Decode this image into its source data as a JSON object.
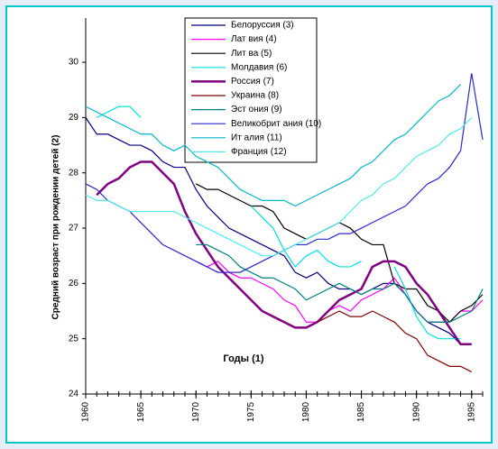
{
  "chart_data": {
    "type": "line",
    "xlabel": "Годы (1)",
    "ylabel": "Средний возраст при рождении детей (2)",
    "x": [
      1960,
      1961,
      1962,
      1963,
      1964,
      1965,
      1966,
      1967,
      1968,
      1969,
      1970,
      1971,
      1972,
      1973,
      1974,
      1975,
      1976,
      1977,
      1978,
      1979,
      1980,
      1981,
      1982,
      1983,
      1984,
      1985,
      1986,
      1987,
      1988,
      1989,
      1990,
      1991,
      1992,
      1993,
      1994,
      1995,
      1996
    ],
    "xlim": [
      1960,
      1996
    ],
    "xticks": [
      1960,
      1965,
      1970,
      1975,
      1980,
      1985,
      1990,
      1995
    ],
    "ylim": [
      24,
      30.8
    ],
    "yticks": [
      24,
      25,
      26,
      27,
      28,
      29,
      30
    ],
    "series": [
      {
        "name": "Белоруссия (3)",
        "color": "#000080",
        "values": [
          29.0,
          28.7,
          28.7,
          28.6,
          28.5,
          28.5,
          28.4,
          28.2,
          28.1,
          28.1,
          27.7,
          27.4,
          27.2,
          27.0,
          26.9,
          26.8,
          26.7,
          26.6,
          26.5,
          26.2,
          26.1,
          26.2,
          26.0,
          25.9,
          25.9,
          25.8,
          25.9,
          26.0,
          26.0,
          25.8,
          25.5,
          25.3,
          25.2,
          25.1,
          24.9,
          24.9,
          null
        ]
      },
      {
        "name": "Лат вия (4)",
        "color": "#ff00ff",
        "values": [
          null,
          null,
          null,
          null,
          null,
          null,
          null,
          null,
          null,
          null,
          26.4,
          26.3,
          26.4,
          26.2,
          26.1,
          26.1,
          26.0,
          25.9,
          25.7,
          25.6,
          25.3,
          25.3,
          25.5,
          25.6,
          25.5,
          25.7,
          25.8,
          25.9,
          26.1,
          25.8,
          25.5,
          25.3,
          25.3,
          25.3,
          25.5,
          25.5,
          25.7
        ]
      },
      {
        "name": "Лит ва (5)",
        "color": "#000000",
        "values": [
          null,
          null,
          null,
          null,
          null,
          null,
          null,
          null,
          null,
          null,
          27.8,
          27.7,
          27.7,
          27.6,
          27.5,
          27.4,
          27.4,
          27.3,
          27.0,
          26.9,
          26.8,
          26.9,
          27.0,
          27.1,
          27.0,
          26.8,
          26.7,
          26.7,
          26.0,
          25.9,
          25.9,
          25.6,
          25.5,
          25.3,
          25.5,
          25.6,
          25.8
        ]
      },
      {
        "name": "Молдавия (6)",
        "color": "#00e0e0",
        "values": [
          null,
          29.0,
          29.1,
          29.2,
          29.2,
          29.0,
          null,
          null,
          null,
          null,
          null,
          null,
          null,
          null,
          null,
          27.4,
          27.2,
          27.0,
          26.6,
          26.3,
          26.5,
          26.6,
          26.4,
          26.3,
          26.3,
          26.4,
          null,
          null,
          26.3,
          25.9,
          25.4,
          25.1,
          25.0,
          25.0,
          25.0,
          null,
          null
        ]
      },
      {
        "name": "Россия (7)",
        "color": "#800080",
        "linewidth": 2.5,
        "values": [
          null,
          27.6,
          27.8,
          27.9,
          28.1,
          28.2,
          28.2,
          28.0,
          27.8,
          27.3,
          26.9,
          26.6,
          26.3,
          26.1,
          25.9,
          25.7,
          25.5,
          25.4,
          25.3,
          25.2,
          25.2,
          25.3,
          25.5,
          25.7,
          25.8,
          25.9,
          26.3,
          26.4,
          26.4,
          26.3,
          26.0,
          25.8,
          25.5,
          25.2,
          24.9,
          24.9,
          null
        ]
      },
      {
        "name": "Украина (8)",
        "color": "#800000",
        "values": [
          null,
          null,
          null,
          null,
          null,
          null,
          null,
          null,
          null,
          null,
          null,
          null,
          null,
          null,
          null,
          null,
          null,
          null,
          null,
          null,
          null,
          25.3,
          25.4,
          25.5,
          25.4,
          25.4,
          25.5,
          25.4,
          25.3,
          25.1,
          25.0,
          24.7,
          24.6,
          24.5,
          24.5,
          24.4,
          null
        ]
      },
      {
        "name": "Эст ония (9)",
        "color": "#008080",
        "values": [
          null,
          null,
          null,
          null,
          null,
          null,
          null,
          null,
          null,
          null,
          26.7,
          26.7,
          26.6,
          26.5,
          26.3,
          26.2,
          26.1,
          26.1,
          26.0,
          25.9,
          25.7,
          25.8,
          25.9,
          26.0,
          25.9,
          25.8,
          25.9,
          25.9,
          26.0,
          25.8,
          25.5,
          25.3,
          25.3,
          25.3,
          25.4,
          25.5,
          25.9
        ]
      },
      {
        "name": "Великобрит ания (10)",
        "color": "#2a2acc",
        "values": [
          27.8,
          27.7,
          27.5,
          27.4,
          27.3,
          27.1,
          26.9,
          26.7,
          26.6,
          26.5,
          26.4,
          26.3,
          26.2,
          26.2,
          26.2,
          26.3,
          26.4,
          26.5,
          26.6,
          26.7,
          26.7,
          26.8,
          26.8,
          26.9,
          26.9,
          27.0,
          27.1,
          27.2,
          27.3,
          27.4,
          27.6,
          27.8,
          27.9,
          28.1,
          28.4,
          29.8,
          28.6
        ]
      },
      {
        "name": "Ит алия (11)",
        "color": "#00b8c8",
        "values": [
          29.2,
          29.1,
          29.0,
          28.9,
          28.8,
          28.7,
          28.7,
          28.5,
          28.4,
          28.5,
          28.3,
          28.2,
          28.1,
          27.9,
          27.7,
          27.6,
          27.5,
          27.5,
          27.5,
          27.4,
          27.5,
          27.6,
          27.7,
          27.8,
          27.9,
          28.1,
          28.2,
          28.4,
          28.6,
          28.7,
          28.9,
          29.1,
          29.3,
          29.4,
          29.6,
          null,
          null
        ]
      },
      {
        "name": "Франция (12)",
        "color": "#50eaea",
        "values": [
          27.6,
          27.5,
          27.5,
          27.4,
          27.3,
          27.3,
          27.3,
          27.3,
          27.3,
          27.2,
          27.1,
          27.0,
          26.9,
          26.8,
          26.7,
          26.6,
          26.5,
          26.5,
          26.6,
          26.7,
          26.8,
          26.9,
          27.0,
          27.1,
          27.3,
          27.5,
          27.6,
          27.8,
          27.9,
          28.1,
          28.3,
          28.4,
          28.5,
          28.7,
          28.8,
          29.0,
          null
        ]
      }
    ]
  }
}
